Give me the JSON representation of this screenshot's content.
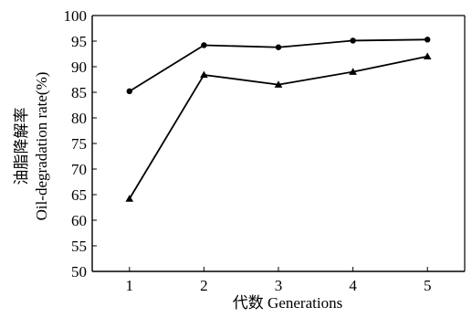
{
  "chart_data": {
    "type": "line",
    "x": [
      1,
      2,
      3,
      4,
      5
    ],
    "series": [
      {
        "marker": "circle",
        "values": [
          85.2,
          94.2,
          93.8,
          95.1,
          95.3
        ]
      },
      {
        "marker": "triangle",
        "values": [
          64.2,
          88.4,
          86.5,
          89.0,
          92.0
        ]
      }
    ],
    "xlabel": "代数 Generations",
    "ylabel_line1": "油脂降解率",
    "ylabel_line2": "Oil-degradation rate(%)",
    "xlim": [
      0.5,
      5.5
    ],
    "ylim": [
      50,
      100
    ],
    "xticks": [
      "1",
      "2",
      "3",
      "4",
      "5"
    ],
    "yticks": [
      "50",
      "55",
      "60",
      "65",
      "70",
      "75",
      "80",
      "85",
      "90",
      "95",
      "100"
    ],
    "grid": false,
    "colors": {
      "line": "#000000",
      "axis": "#000000"
    }
  }
}
